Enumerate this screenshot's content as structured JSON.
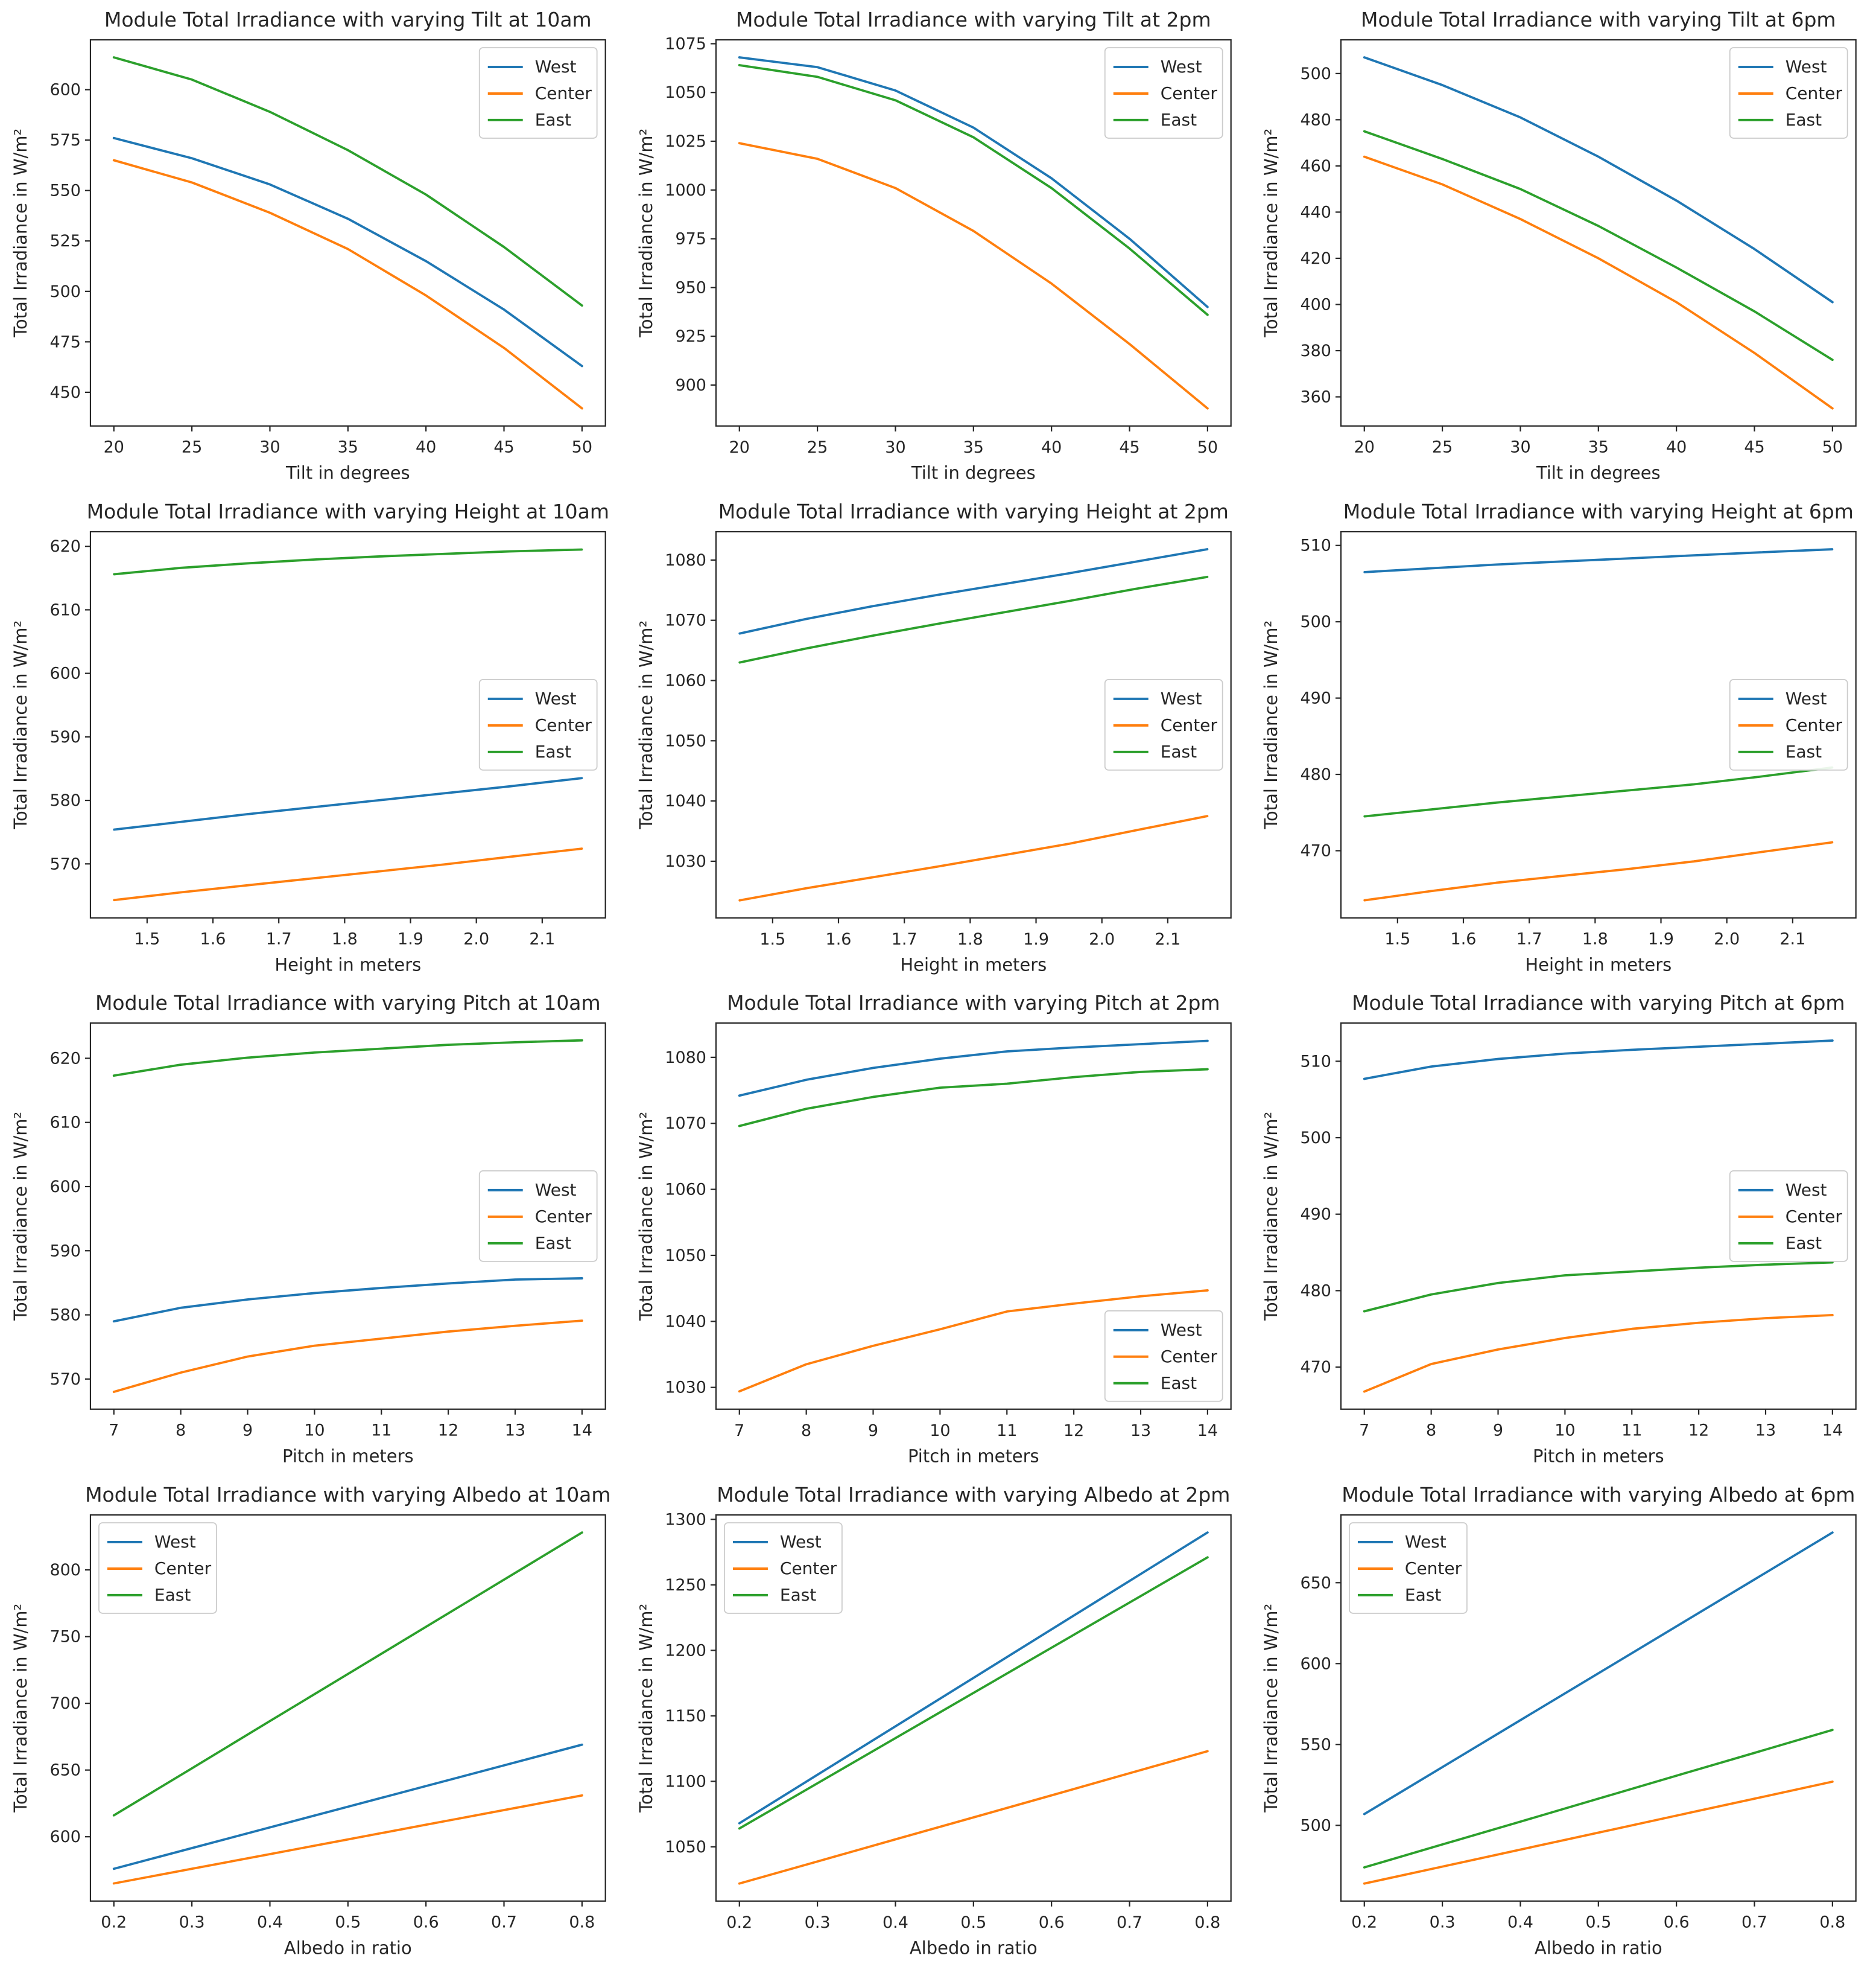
{
  "series_colors": {
    "West": "#1f77b4",
    "Center": "#ff7f0e",
    "East": "#2ca02c"
  },
  "style": {
    "background": "#ffffff",
    "spine_color": "#262626",
    "text_color": "#262626",
    "legend_border_color": "#cccccc",
    "legend_background": "#ffffff"
  },
  "chart_data": [
    {
      "type": "line",
      "title": "Module Total Irradiance with varying Tilt at 10am",
      "xlabel": "Tilt in degrees",
      "ylabel": "Total Irradiance in W/m²",
      "legend_loc": "upper-right",
      "x": [
        20,
        25,
        30,
        35,
        40,
        45,
        50
      ],
      "xtick_labels": [
        "20",
        "25",
        "30",
        "35",
        "40",
        "45",
        "50"
      ],
      "xticks": [
        20,
        25,
        30,
        35,
        40,
        45,
        50
      ],
      "xlim": [
        18.5,
        51.5
      ],
      "yticks": [
        450,
        475,
        500,
        525,
        550,
        575,
        600
      ],
      "ytick_labels": [
        "450",
        "475",
        "500",
        "525",
        "550",
        "575",
        "600"
      ],
      "ylim": [
        433.3,
        624.7
      ],
      "series": [
        {
          "name": "West",
          "values": [
            576,
            566,
            553,
            536,
            515,
            491,
            463
          ]
        },
        {
          "name": "Center",
          "values": [
            565,
            554,
            539,
            521,
            498,
            472,
            442
          ]
        },
        {
          "name": "East",
          "values": [
            616,
            605,
            589,
            570,
            548,
            522,
            493
          ]
        }
      ]
    },
    {
      "type": "line",
      "title": "Module Total Irradiance with varying Tilt at 2pm",
      "xlabel": "Tilt in degrees",
      "ylabel": "Total Irradiance in W/m²",
      "legend_loc": "upper-right",
      "x": [
        20,
        25,
        30,
        35,
        40,
        45,
        50
      ],
      "xtick_labels": [
        "20",
        "25",
        "30",
        "35",
        "40",
        "45",
        "50"
      ],
      "xticks": [
        20,
        25,
        30,
        35,
        40,
        45,
        50
      ],
      "xlim": [
        18.5,
        51.5
      ],
      "yticks": [
        900,
        925,
        950,
        975,
        1000,
        1025,
        1050,
        1075
      ],
      "ytick_labels": [
        "900",
        "925",
        "950",
        "975",
        "1000",
        "1025",
        "1050",
        "1075"
      ],
      "ylim": [
        879,
        1077
      ],
      "series": [
        {
          "name": "West",
          "values": [
            1068,
            1063,
            1051,
            1032,
            1006,
            975,
            940
          ]
        },
        {
          "name": "Center",
          "values": [
            1024,
            1016,
            1001,
            979,
            952,
            921,
            888
          ]
        },
        {
          "name": "East",
          "values": [
            1064,
            1058,
            1046,
            1027,
            1001,
            970,
            936
          ]
        }
      ]
    },
    {
      "type": "line",
      "title": "Module Total Irradiance with varying Tilt at 6pm",
      "xlabel": "Tilt in degrees",
      "ylabel": "Total Irradiance in W/m²",
      "legend_loc": "upper-right",
      "x": [
        20,
        25,
        30,
        35,
        40,
        45,
        50
      ],
      "xtick_labels": [
        "20",
        "25",
        "30",
        "35",
        "40",
        "45",
        "50"
      ],
      "xticks": [
        20,
        25,
        30,
        35,
        40,
        45,
        50
      ],
      "xlim": [
        18.5,
        51.5
      ],
      "yticks": [
        360,
        380,
        400,
        420,
        440,
        460,
        480,
        500
      ],
      "ytick_labels": [
        "360",
        "380",
        "400",
        "420",
        "440",
        "460",
        "480",
        "500"
      ],
      "ylim": [
        347.4,
        514.6
      ],
      "series": [
        {
          "name": "West",
          "values": [
            507,
            495,
            481,
            464,
            445,
            424,
            401
          ]
        },
        {
          "name": "Center",
          "values": [
            464,
            452,
            437,
            420,
            401,
            379,
            355
          ]
        },
        {
          "name": "East",
          "values": [
            475,
            463,
            450,
            434,
            416,
            397,
            376
          ]
        }
      ]
    },
    {
      "type": "line",
      "title": "Module Total Irradiance with varying Height at 10am",
      "xlabel": "Height in meters",
      "ylabel": "Total Irradiance in W/m²",
      "legend_loc": "center-right",
      "x": [
        1.45,
        1.55,
        1.65,
        1.75,
        1.85,
        1.95,
        2.05,
        2.16
      ],
      "xtick_labels": [
        "1.5",
        "1.6",
        "1.7",
        "1.8",
        "1.9",
        "2.0",
        "2.1"
      ],
      "xticks": [
        1.5,
        1.6,
        1.7,
        1.8,
        1.9,
        2.0,
        2.1
      ],
      "xlim": [
        1.414,
        2.196
      ],
      "yticks": [
        570,
        580,
        590,
        600,
        610,
        620
      ],
      "ytick_labels": [
        "570",
        "580",
        "590",
        "600",
        "610",
        "620"
      ],
      "ylim": [
        561.5,
        622.3
      ],
      "series": [
        {
          "name": "West",
          "values": [
            575.4,
            576.6,
            577.8,
            578.9,
            580.0,
            581.1,
            582.2,
            583.5
          ]
        },
        {
          "name": "Center",
          "values": [
            564.3,
            565.5,
            566.6,
            567.7,
            568.8,
            569.9,
            571.1,
            572.4
          ]
        },
        {
          "name": "East",
          "values": [
            615.6,
            616.6,
            617.3,
            617.9,
            618.4,
            618.8,
            619.2,
            619.5
          ]
        }
      ]
    },
    {
      "type": "line",
      "title": "Module Total Irradiance with varying Height at 2pm",
      "xlabel": "Height in meters",
      "ylabel": "Total Irradiance in W/m²",
      "legend_loc": "center-right",
      "x": [
        1.45,
        1.55,
        1.65,
        1.75,
        1.85,
        1.95,
        2.05,
        2.16
      ],
      "xtick_labels": [
        "1.5",
        "1.6",
        "1.7",
        "1.8",
        "1.9",
        "2.0",
        "2.1"
      ],
      "xticks": [
        1.5,
        1.6,
        1.7,
        1.8,
        1.9,
        2.0,
        2.1
      ],
      "xlim": [
        1.414,
        2.196
      ],
      "yticks": [
        1030,
        1040,
        1050,
        1060,
        1070,
        1080
      ],
      "ytick_labels": [
        "1030",
        "1040",
        "1050",
        "1060",
        "1070",
        "1080"
      ],
      "ylim": [
        1020.6,
        1084.7
      ],
      "series": [
        {
          "name": "West",
          "values": [
            1067.8,
            1070.2,
            1072.3,
            1074.2,
            1076.0,
            1077.8,
            1079.7,
            1081.8
          ]
        },
        {
          "name": "Center",
          "values": [
            1023.5,
            1025.5,
            1027.3,
            1029.1,
            1031.0,
            1032.9,
            1035.1,
            1037.5
          ]
        },
        {
          "name": "East",
          "values": [
            1063.0,
            1065.3,
            1067.4,
            1069.4,
            1071.3,
            1073.2,
            1075.2,
            1077.2
          ]
        }
      ]
    },
    {
      "type": "line",
      "title": "Module Total Irradiance with varying Height at 6pm",
      "xlabel": "Height in meters",
      "ylabel": "Total Irradiance in W/m²",
      "legend_loc": "center-right",
      "x": [
        1.45,
        1.55,
        1.65,
        1.75,
        1.85,
        1.95,
        2.05,
        2.16
      ],
      "xtick_labels": [
        "1.5",
        "1.6",
        "1.7",
        "1.8",
        "1.9",
        "2.0",
        "2.1"
      ],
      "xticks": [
        1.5,
        1.6,
        1.7,
        1.8,
        1.9,
        2.0,
        2.1
      ],
      "xlim": [
        1.414,
        2.196
      ],
      "yticks": [
        470,
        480,
        490,
        500,
        510
      ],
      "ytick_labels": [
        "470",
        "480",
        "490",
        "500",
        "510"
      ],
      "ylim": [
        461.2,
        511.8
      ],
      "series": [
        {
          "name": "West",
          "values": [
            506.5,
            507.0,
            507.5,
            507.9,
            508.3,
            508.7,
            509.1,
            509.5
          ]
        },
        {
          "name": "Center",
          "values": [
            463.5,
            464.7,
            465.8,
            466.7,
            467.6,
            468.6,
            469.8,
            471.1
          ]
        },
        {
          "name": "East",
          "values": [
            474.5,
            475.4,
            476.3,
            477.1,
            477.9,
            478.7,
            479.7,
            480.9
          ]
        }
      ]
    },
    {
      "type": "line",
      "title": "Module Total Irradiance with varying Pitch at 10am",
      "xlabel": "Pitch in meters",
      "ylabel": "Total Irradiance in W/m²",
      "legend_loc": "center-right",
      "x": [
        7,
        8,
        9,
        10,
        11,
        12,
        13,
        14
      ],
      "xtick_labels": [
        "7",
        "8",
        "9",
        "10",
        "11",
        "12",
        "13",
        "14"
      ],
      "xticks": [
        7,
        8,
        9,
        10,
        11,
        12,
        13,
        14
      ],
      "xlim": [
        6.65,
        14.35
      ],
      "yticks": [
        570,
        580,
        590,
        600,
        610,
        620
      ],
      "ytick_labels": [
        "570",
        "580",
        "590",
        "600",
        "610",
        "620"
      ],
      "ylim": [
        565.3,
        625.5
      ],
      "series": [
        {
          "name": "West",
          "values": [
            579.0,
            581.1,
            582.4,
            583.4,
            584.2,
            584.9,
            585.5,
            585.7
          ]
        },
        {
          "name": "Center",
          "values": [
            568.0,
            571.0,
            573.5,
            575.2,
            576.3,
            577.4,
            578.3,
            579.1
          ]
        },
        {
          "name": "East",
          "values": [
            617.3,
            619.0,
            620.1,
            620.9,
            621.5,
            622.1,
            622.5,
            622.8
          ]
        }
      ]
    },
    {
      "type": "line",
      "title": "Module Total Irradiance with varying Pitch at 2pm",
      "xlabel": "Pitch in meters",
      "ylabel": "Total Irradiance in W/m²",
      "legend_loc": "lower-right",
      "x": [
        7,
        8,
        9,
        10,
        11,
        12,
        13,
        14
      ],
      "xtick_labels": [
        "7",
        "8",
        "9",
        "10",
        "11",
        "12",
        "13",
        "14"
      ],
      "xticks": [
        7,
        8,
        9,
        10,
        11,
        12,
        13,
        14
      ],
      "xlim": [
        6.65,
        14.35
      ],
      "yticks": [
        1030,
        1040,
        1050,
        1060,
        1070,
        1080
      ],
      "ytick_labels": [
        "1030",
        "1040",
        "1050",
        "1060",
        "1070",
        "1080"
      ],
      "ylim": [
        1026.7,
        1085.2
      ],
      "series": [
        {
          "name": "West",
          "values": [
            1074.2,
            1076.6,
            1078.4,
            1079.8,
            1080.9,
            1081.5,
            1082.0,
            1082.5
          ]
        },
        {
          "name": "Center",
          "values": [
            1029.4,
            1033.5,
            1036.3,
            1038.8,
            1041.5,
            1042.7,
            1043.8,
            1044.7
          ]
        },
        {
          "name": "East",
          "values": [
            1069.6,
            1072.2,
            1074.0,
            1075.4,
            1076.0,
            1077.0,
            1077.8,
            1078.2
          ]
        }
      ]
    },
    {
      "type": "line",
      "title": "Module Total Irradiance with varying Pitch at 6pm",
      "xlabel": "Pitch in meters",
      "ylabel": "Total Irradiance in W/m²",
      "legend_loc": "center-right",
      "x": [
        7,
        8,
        9,
        10,
        11,
        12,
        13,
        14
      ],
      "xtick_labels": [
        "7",
        "8",
        "9",
        "10",
        "11",
        "12",
        "13",
        "14"
      ],
      "xticks": [
        7,
        8,
        9,
        10,
        11,
        12,
        13,
        14
      ],
      "xlim": [
        6.65,
        14.35
      ],
      "yticks": [
        470,
        480,
        490,
        500,
        510
      ],
      "ytick_labels": [
        "470",
        "480",
        "490",
        "500",
        "510"
      ],
      "ylim": [
        464.5,
        515.0
      ],
      "series": [
        {
          "name": "West",
          "values": [
            507.7,
            509.3,
            510.3,
            511.0,
            511.5,
            511.9,
            512.3,
            512.7
          ]
        },
        {
          "name": "Center",
          "values": [
            466.8,
            470.4,
            472.3,
            473.8,
            475.0,
            475.8,
            476.4,
            476.8
          ]
        },
        {
          "name": "East",
          "values": [
            477.3,
            479.5,
            481.0,
            482.0,
            482.5,
            483.0,
            483.4,
            483.7
          ]
        }
      ]
    },
    {
      "type": "line",
      "title": "Module Total Irradiance with varying Albedo at 10am",
      "xlabel": "Albedo in ratio",
      "ylabel": "Total Irradiance in W/m²",
      "legend_loc": "upper-left",
      "x": [
        0.2,
        0.3,
        0.4,
        0.5,
        0.6,
        0.7,
        0.8
      ],
      "xtick_labels": [
        "0.2",
        "0.3",
        "0.4",
        "0.5",
        "0.6",
        "0.7",
        "0.8"
      ],
      "xticks": [
        0.2,
        0.3,
        0.4,
        0.5,
        0.6,
        0.7,
        0.8
      ],
      "xlim": [
        0.17,
        0.83
      ],
      "yticks": [
        600,
        650,
        700,
        750,
        800
      ],
      "ytick_labels": [
        "600",
        "650",
        "700",
        "750",
        "800"
      ],
      "ylim": [
        551.8,
        841.2
      ],
      "series": [
        {
          "name": "West",
          "values": [
            576,
            591.5,
            607,
            622.5,
            638,
            653.5,
            669
          ]
        },
        {
          "name": "Center",
          "values": [
            565,
            576,
            587,
            598,
            609,
            620,
            631
          ]
        },
        {
          "name": "East",
          "values": [
            616,
            651.3,
            686.7,
            722,
            757.3,
            792.7,
            828
          ]
        }
      ]
    },
    {
      "type": "line",
      "title": "Module Total Irradiance with varying Albedo at 2pm",
      "xlabel": "Albedo in ratio",
      "ylabel": "Total Irradiance in W/m²",
      "legend_loc": "upper-left",
      "x": [
        0.2,
        0.3,
        0.4,
        0.5,
        0.6,
        0.7,
        0.8
      ],
      "xtick_labels": [
        "0.2",
        "0.3",
        "0.4",
        "0.5",
        "0.6",
        "0.7",
        "0.8"
      ],
      "xticks": [
        0.2,
        0.3,
        0.4,
        0.5,
        0.6,
        0.7,
        0.8
      ],
      "xlim": [
        0.17,
        0.83
      ],
      "yticks": [
        1050,
        1100,
        1150,
        1200,
        1250,
        1300
      ],
      "ytick_labels": [
        "1050",
        "1100",
        "1150",
        "1200",
        "1250",
        "1300"
      ],
      "ylim": [
        1008.6,
        1303.4
      ],
      "series": [
        {
          "name": "West",
          "values": [
            1068,
            1105,
            1142,
            1179,
            1216,
            1253,
            1290
          ]
        },
        {
          "name": "Center",
          "values": [
            1022,
            1038.8,
            1055.7,
            1072.5,
            1089.3,
            1106.2,
            1123
          ]
        },
        {
          "name": "East",
          "values": [
            1064,
            1098.5,
            1133,
            1167.5,
            1202,
            1236.5,
            1271
          ]
        }
      ]
    },
    {
      "type": "line",
      "title": "Module Total Irradiance with varying Albedo at 6pm",
      "xlabel": "Albedo in ratio",
      "ylabel": "Total Irradiance in W/m²",
      "legend_loc": "upper-left",
      "x": [
        0.2,
        0.3,
        0.4,
        0.5,
        0.6,
        0.7,
        0.8
      ],
      "xtick_labels": [
        "0.2",
        "0.3",
        "0.4",
        "0.5",
        "0.6",
        "0.7",
        "0.8"
      ],
      "xticks": [
        0.2,
        0.3,
        0.4,
        0.5,
        0.6,
        0.7,
        0.8
      ],
      "xlim": [
        0.17,
        0.83
      ],
      "yticks": [
        500,
        550,
        600,
        650
      ],
      "ytick_labels": [
        "500",
        "550",
        "600",
        "650"
      ],
      "ylim": [
        453.2,
        691.9
      ],
      "series": [
        {
          "name": "West",
          "values": [
            507,
            536,
            565,
            594,
            623,
            652,
            681
          ]
        },
        {
          "name": "Center",
          "values": [
            464,
            474.5,
            485,
            495.5,
            506,
            516.5,
            527
          ]
        },
        {
          "name": "East",
          "values": [
            474,
            488.2,
            502.3,
            516.5,
            530.7,
            544.8,
            559
          ]
        }
      ]
    }
  ]
}
